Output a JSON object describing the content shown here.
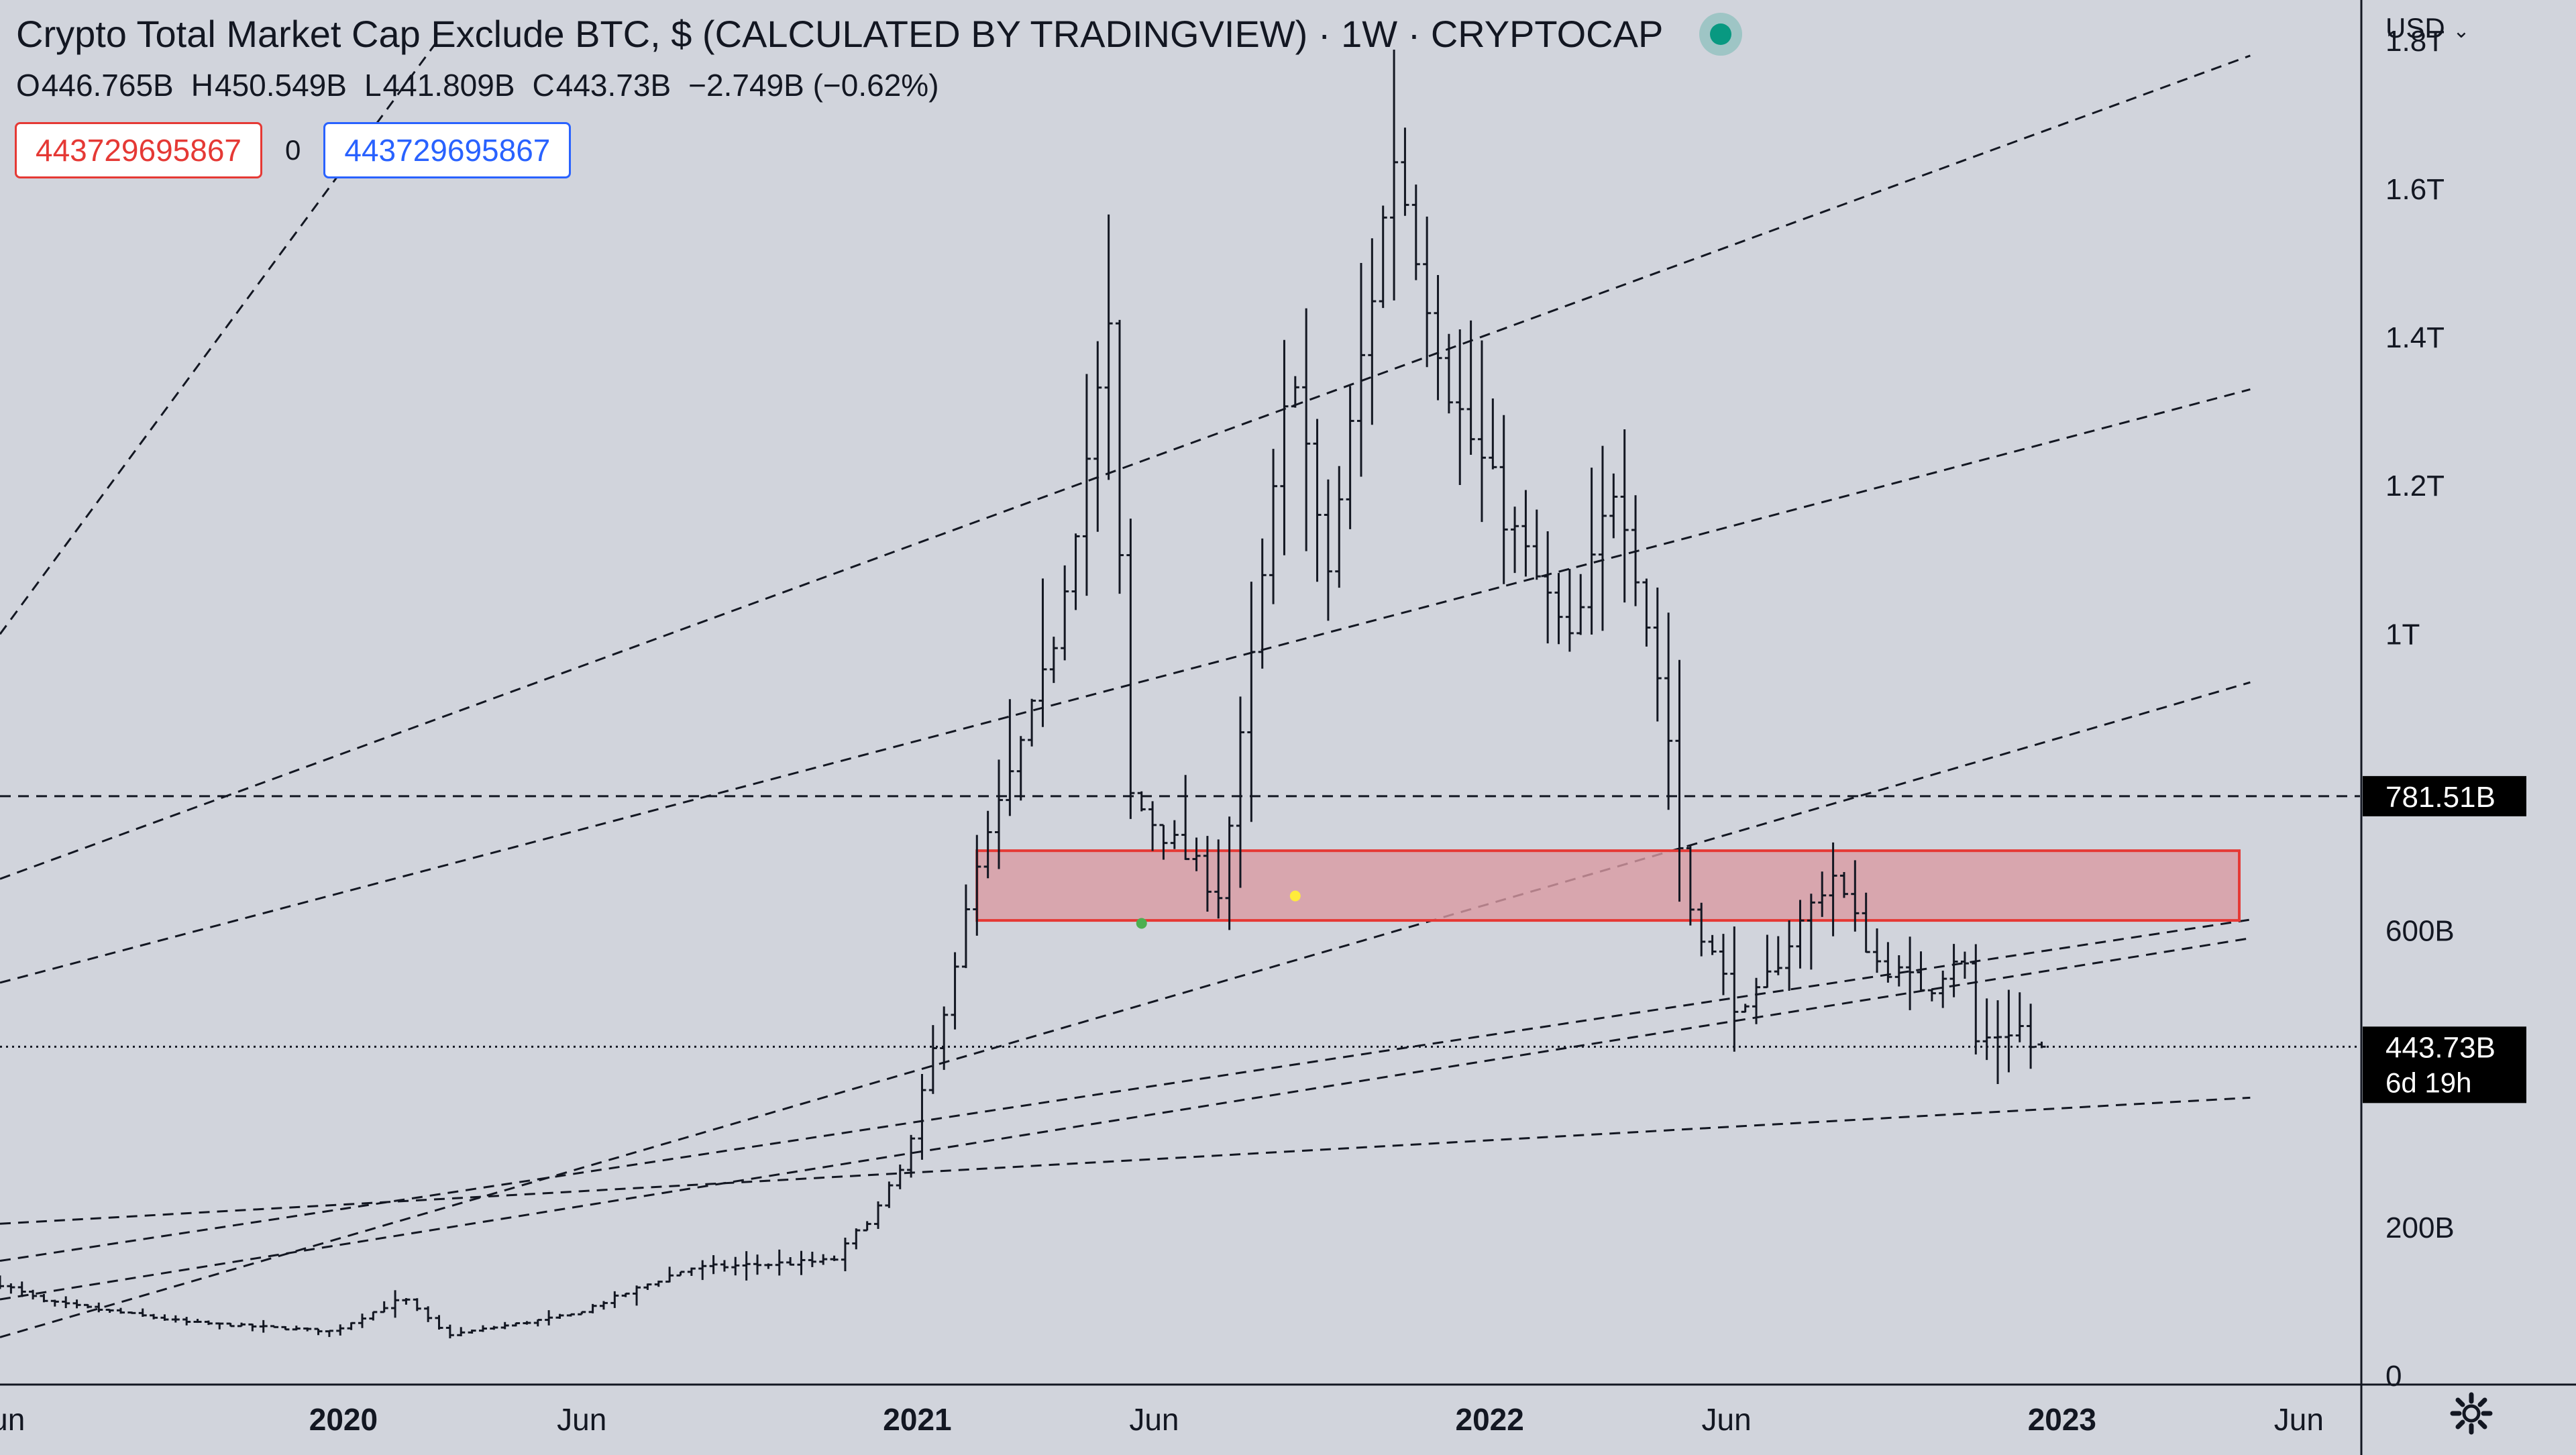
{
  "header": {
    "title": "Crypto Total Market Cap Exclude BTC, $ (CALCULATED BY TRADINGVIEW) · 1W · CRYPTOCAP",
    "ohlc": [
      {
        "key": "O",
        "value": "446.765B"
      },
      {
        "key": "H",
        "value": "450.549B"
      },
      {
        "key": "L",
        "value": "441.809B"
      },
      {
        "key": "C",
        "value": "443.73B"
      }
    ],
    "change": "−2.749B (−0.62%)",
    "status_color": "#089981"
  },
  "inputs": {
    "low_value": "443729695867",
    "spread": "0",
    "high_value": "443729695867"
  },
  "price_scale": {
    "currency": "USD",
    "current_price": "443.73B",
    "countdown": "6d 19h",
    "horizontal_line_label": "781.51B"
  },
  "colors": {
    "background": "#d1d4dc",
    "bars": "#131722",
    "zone_fill": "#d99aa3",
    "zone_border": "#e53935",
    "label_bg": "#000000",
    "low_marker": "#4caf50",
    "mid_marker": "#ffeb3b"
  },
  "chart_data": {
    "type": "ohlc",
    "title": "Crypto Total Market Cap Exclude BTC, $ (CALCULATED BY TRADINGVIEW) · 1W · CRYPTOCAP",
    "interval": "1W",
    "unit": "USD",
    "x_axis": {
      "range": [
        "2019-05-27",
        "2023-07-10"
      ],
      "ticks": [
        {
          "date": "2019-06-01",
          "label": "un",
          "bold": false
        },
        {
          "date": "2020-01-01",
          "label": "2020",
          "bold": true
        },
        {
          "date": "2020-06-01",
          "label": "Jun",
          "bold": false
        },
        {
          "date": "2021-01-01",
          "label": "2021",
          "bold": true
        },
        {
          "date": "2021-06-01",
          "label": "Jun",
          "bold": false
        },
        {
          "date": "2022-01-01",
          "label": "2022",
          "bold": true
        },
        {
          "date": "2022-06-01",
          "label": "Jun",
          "bold": false
        },
        {
          "date": "2023-01-01",
          "label": "2023",
          "bold": true
        },
        {
          "date": "2023-06-01",
          "label": "Jun",
          "bold": false
        }
      ]
    },
    "y_axis": {
      "range_billions": [
        -10,
        1855
      ],
      "ticks": [
        {
          "value": 0,
          "label": "0"
        },
        {
          "value": 200,
          "label": "200B"
        },
        {
          "value": 600,
          "label": "600B"
        },
        {
          "value": 1000,
          "label": "1T"
        },
        {
          "value": 1200,
          "label": "1.2T"
        },
        {
          "value": 1400,
          "label": "1.4T"
        },
        {
          "value": 1600,
          "label": "1.6T"
        },
        {
          "value": 1800,
          "label": "1.8T"
        }
      ]
    },
    "series_description": "Weekly OHLC bars, values in billions USD",
    "anchors": [
      {
        "date": "2019-05-27",
        "value": 130
      },
      {
        "date": "2019-07-01",
        "value": 100
      },
      {
        "date": "2019-10-01",
        "value": 72
      },
      {
        "date": "2020-01-01",
        "value": 60
      },
      {
        "date": "2020-02-15",
        "value": 105
      },
      {
        "date": "2020-03-14",
        "value": 55
      },
      {
        "date": "2020-06-01",
        "value": 82
      },
      {
        "date": "2020-08-15",
        "value": 145
      },
      {
        "date": "2020-11-15",
        "value": 155
      },
      {
        "date": "2020-12-15",
        "value": 230
      },
      {
        "date": "2021-01-01",
        "value": 290
      },
      {
        "date": "2021-02-15",
        "value": 680
      },
      {
        "date": "2021-04-01",
        "value": 950
      },
      {
        "date": "2021-05-10",
        "value": 1400
      },
      {
        "date": "2021-05-24",
        "value": 780
      },
      {
        "date": "2021-07-20",
        "value": 650
      },
      {
        "date": "2021-09-05",
        "value": 1380
      },
      {
        "date": "2021-09-25",
        "value": 1060
      },
      {
        "date": "2021-11-08",
        "value": 1650
      },
      {
        "date": "2021-12-15",
        "value": 1320
      },
      {
        "date": "2022-01-20",
        "value": 1150
      },
      {
        "date": "2022-03-01",
        "value": 980
      },
      {
        "date": "2022-03-30",
        "value": 1220
      },
      {
        "date": "2022-05-01",
        "value": 880
      },
      {
        "date": "2022-05-12",
        "value": 650
      },
      {
        "date": "2022-06-18",
        "value": 480
      },
      {
        "date": "2022-08-14",
        "value": 680
      },
      {
        "date": "2022-09-10",
        "value": 560
      },
      {
        "date": "2022-10-15",
        "value": 520
      },
      {
        "date": "2022-11-05",
        "value": 580
      },
      {
        "date": "2022-11-14",
        "value": 450
      },
      {
        "date": "2022-12-12",
        "value": 470
      },
      {
        "date": "2022-12-19",
        "value": 443.73
      }
    ],
    "last_bar": {
      "date": "2022-12-19",
      "open": 446.765,
      "high": 450.549,
      "low": 441.809,
      "close": 443.73
    },
    "horizontal_lines": [
      {
        "value": 781.51,
        "style": "dashed",
        "label": "781.51B"
      },
      {
        "value": 443.73,
        "style": "dotted",
        "label": "443.73B"
      }
    ],
    "zone": {
      "date_from": "2021-02-08",
      "date_to": "2023-04-24",
      "value_low": 614,
      "value_high": 708
    },
    "markers": [
      {
        "date": "2021-05-24",
        "value": 610,
        "color": "#4caf50"
      },
      {
        "date": "2021-08-30",
        "value": 647,
        "color": "#ffeb3b"
      }
    ],
    "trendlines": [
      {
        "points": [
          [
            "2019-05-27",
            1000
          ],
          [
            "2020-03-01",
            1800
          ]
        ]
      },
      {
        "points": [
          [
            "2019-05-27",
            670
          ],
          [
            "2023-05-01",
            1780
          ]
        ]
      },
      {
        "points": [
          [
            "2019-05-27",
            530
          ],
          [
            "2023-05-01",
            1330
          ]
        ]
      },
      {
        "points": [
          [
            "2019-05-27",
            155
          ],
          [
            "2023-05-01",
            615
          ]
        ]
      },
      {
        "points": [
          [
            "2019-05-27",
            52
          ],
          [
            "2023-05-01",
            935
          ]
        ]
      },
      {
        "points": [
          [
            "2019-05-27",
            205
          ],
          [
            "2023-05-01",
            375
          ]
        ]
      },
      {
        "points": [
          [
            "2019-05-27",
            103
          ],
          [
            "2023-05-01",
            590
          ]
        ]
      }
    ],
    "grid": false,
    "legend": "none"
  }
}
